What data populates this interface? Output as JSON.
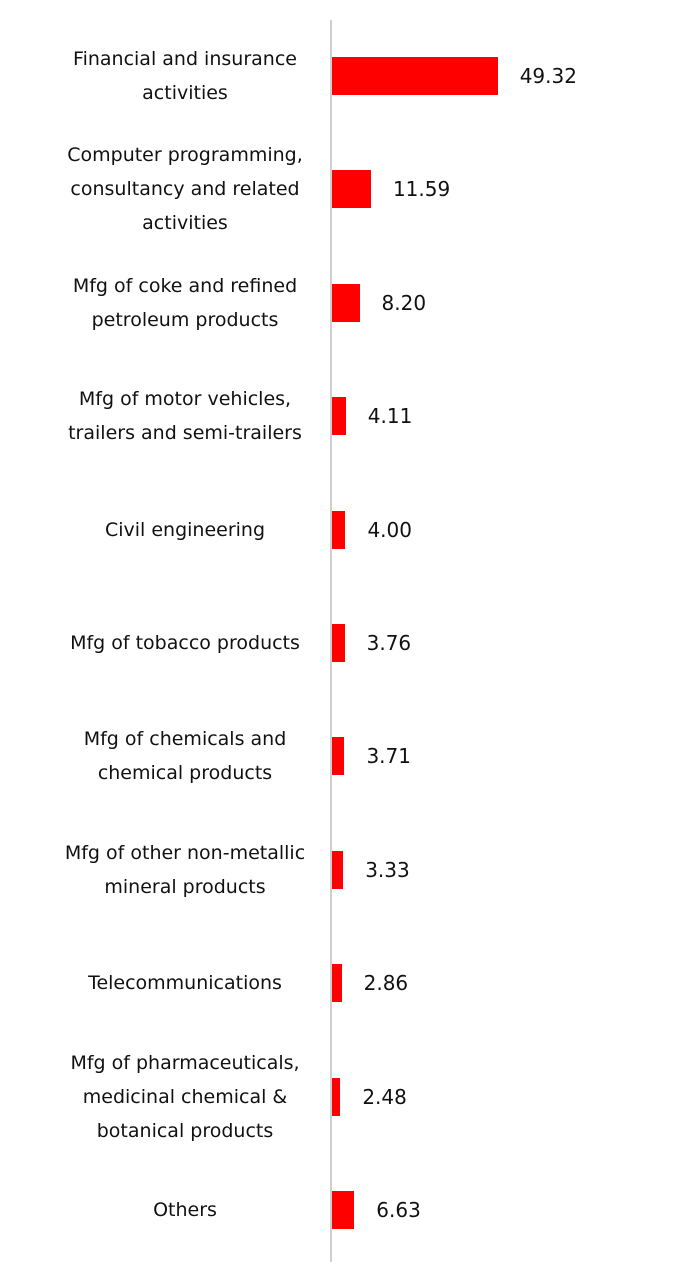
{
  "chart_data": {
    "type": "bar",
    "orientation": "horizontal",
    "color": "#ff0000",
    "categories": [
      "Financial and insurance activities",
      "Computer programming, consultancy and related activities",
      "Mfg of coke and refined petroleum products",
      "Mfg of motor vehicles, trailers and semi-trailers",
      "Civil engineering",
      "Mfg of tobacco products",
      "Mfg of chemicals and chemical products",
      "Mfg of other non-metallic mineral products",
      "Telecommunications",
      "Mfg of pharmaceuticals, medicinal chemical & botanical products",
      "Others"
    ],
    "values": [
      49.32,
      11.59,
      8.2,
      4.11,
      4.0,
      3.76,
      3.71,
      3.33,
      2.86,
      2.48,
      6.63
    ],
    "value_labels": [
      "49.32",
      "11.59",
      "8.20",
      "4.11",
      "4.00",
      "3.76",
      "3.71",
      "3.33",
      "2.86",
      "2.48",
      "6.63"
    ]
  }
}
